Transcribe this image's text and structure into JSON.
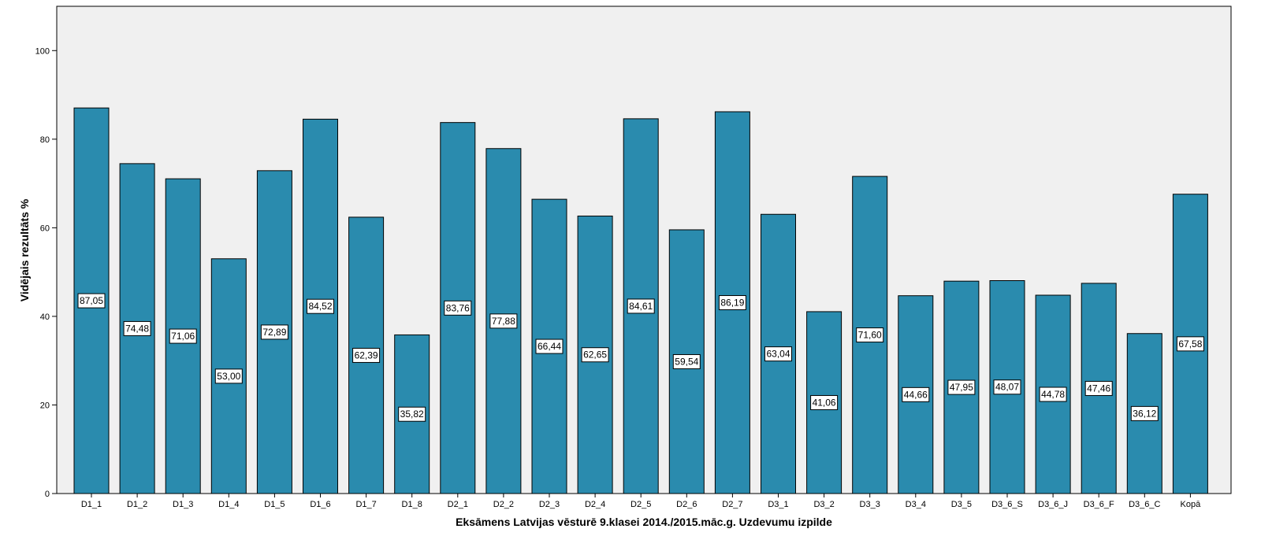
{
  "chart_data": {
    "type": "bar",
    "title": "",
    "xlabel": "Eksāmens Latvijas vēsturē 9.klasei 2014./2015.māc.g. Uzdevumu izpilde",
    "ylabel": "Vidējais rezultāts %",
    "ylim": [
      0,
      110
    ],
    "yticks": [
      0,
      20,
      40,
      60,
      80,
      100
    ],
    "categories": [
      "D1_1",
      "D1_2",
      "D1_3",
      "D1_4",
      "D1_5",
      "D1_6",
      "D1_7",
      "D1_8",
      "D2_1",
      "D2_2",
      "D2_3",
      "D2_4",
      "D2_5",
      "D2_6",
      "D2_7",
      "D3_1",
      "D3_2",
      "D3_3",
      "D3_4",
      "D3_5",
      "D3_6_S",
      "D3_6_J",
      "D3_6_F",
      "D3_6_C",
      "Kopā"
    ],
    "values": [
      87.05,
      74.48,
      71.06,
      53.0,
      72.89,
      84.52,
      62.39,
      35.82,
      83.76,
      77.88,
      66.44,
      62.65,
      84.61,
      59.54,
      86.19,
      63.04,
      41.06,
      71.6,
      44.66,
      47.95,
      48.07,
      44.78,
      47.46,
      36.12,
      67.58
    ],
    "data_labels": [
      "87,05",
      "74,48",
      "71,06",
      "53,00",
      "72,89",
      "84,52",
      "62,39",
      "35,82",
      "83,76",
      "77,88",
      "66,44",
      "62,65",
      "84,61",
      "59,54",
      "86,19",
      "63,04",
      "41,06",
      "71,60",
      "44,66",
      "47,95",
      "48,07",
      "44,78",
      "47,46",
      "36,12",
      "67,58"
    ],
    "grid": false,
    "legend": "none",
    "colors": {
      "bar": "#2A8BAE",
      "bar_edge": "#000000",
      "plot_bg": "#F0F0F0",
      "label_bg": "#FFFFFF"
    }
  }
}
